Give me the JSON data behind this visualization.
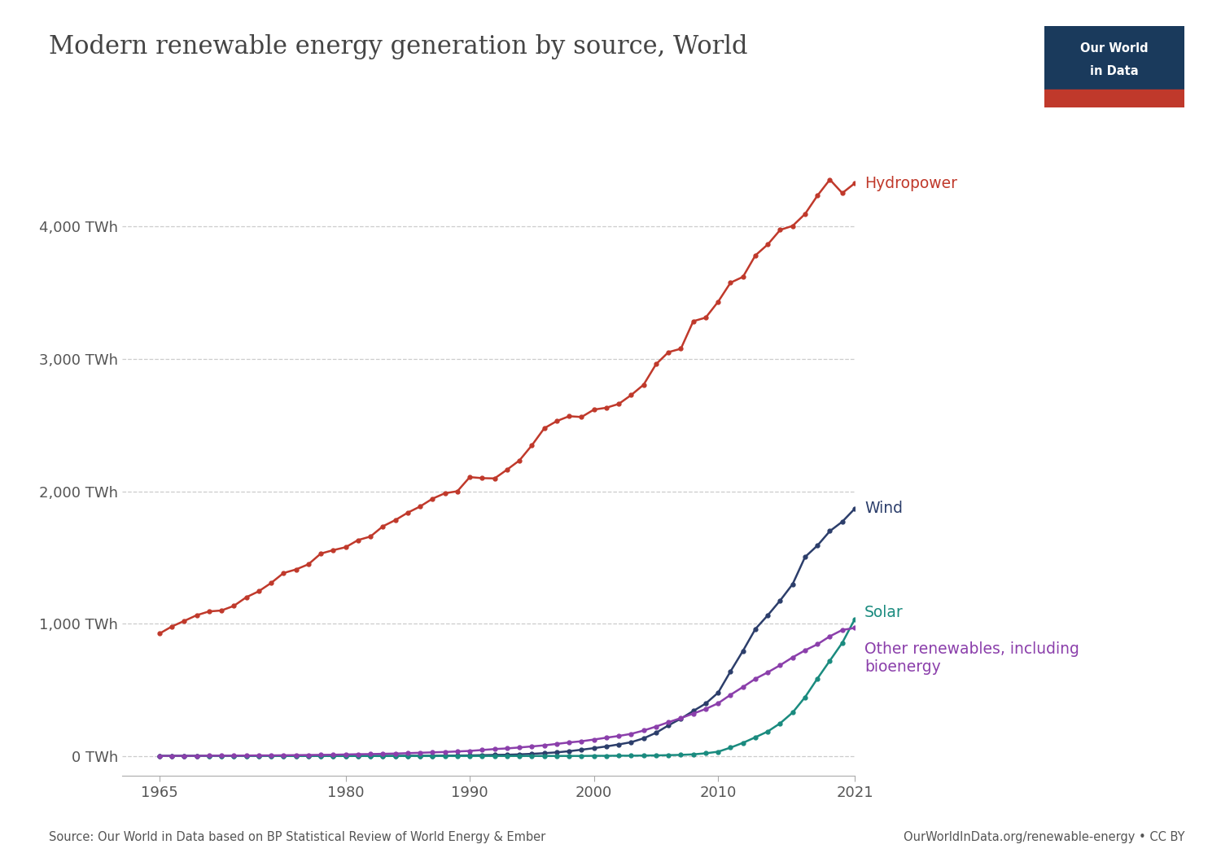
{
  "title": "Modern renewable energy generation by source, World",
  "source_text": "Source: Our World in Data based on BP Statistical Review of World Energy & Ember",
  "url_text": "OurWorldInData.org/renewable-energy • CC BY",
  "background_color": "#ffffff",
  "text_color": "#555555",
  "years": [
    1965,
    1966,
    1967,
    1968,
    1969,
    1970,
    1971,
    1972,
    1973,
    1974,
    1975,
    1976,
    1977,
    1978,
    1979,
    1980,
    1981,
    1982,
    1983,
    1984,
    1985,
    1986,
    1987,
    1988,
    1989,
    1990,
    1991,
    1992,
    1993,
    1994,
    1995,
    1996,
    1997,
    1998,
    1999,
    2000,
    2001,
    2002,
    2003,
    2004,
    2005,
    2006,
    2007,
    2008,
    2009,
    2010,
    2011,
    2012,
    2013,
    2014,
    2015,
    2016,
    2017,
    2018,
    2019,
    2020,
    2021
  ],
  "hydropower": [
    924,
    978,
    1020,
    1063,
    1092,
    1099,
    1134,
    1199,
    1244,
    1307,
    1382,
    1409,
    1448,
    1529,
    1555,
    1577,
    1631,
    1658,
    1735,
    1782,
    1838,
    1885,
    1944,
    1985,
    2000,
    2107,
    2099,
    2097,
    2163,
    2233,
    2347,
    2476,
    2530,
    2567,
    2561,
    2617,
    2631,
    2660,
    2727,
    2805,
    2960,
    3051,
    3077,
    3285,
    3312,
    3432,
    3576,
    3620,
    3782,
    3865,
    3975,
    4005,
    4095,
    4234,
    4355,
    4253,
    4327
  ],
  "wind": [
    0,
    0,
    0,
    0,
    0,
    0,
    0,
    0,
    0,
    0,
    0,
    0,
    0,
    0,
    0,
    0,
    0,
    0,
    0,
    0,
    1,
    1,
    1,
    2,
    3,
    4,
    6,
    8,
    9,
    12,
    16,
    21,
    27,
    36,
    47,
    59,
    72,
    87,
    104,
    133,
    175,
    231,
    282,
    340,
    396,
    478,
    639,
    794,
    959,
    1063,
    1175,
    1298,
    1503,
    1590,
    1699,
    1770,
    1868
  ],
  "solar": [
    0,
    0,
    0,
    0,
    0,
    0,
    0,
    0,
    0,
    0,
    0,
    0,
    0,
    0,
    0,
    0,
    0,
    0,
    0,
    0,
    0,
    0,
    0,
    0,
    0,
    0,
    0,
    0,
    0,
    0,
    0,
    0,
    0,
    0,
    0,
    1,
    1,
    2,
    2,
    3,
    4,
    6,
    8,
    12,
    20,
    32,
    63,
    99,
    141,
    185,
    247,
    328,
    444,
    585,
    720,
    855,
    1033
  ],
  "other_renewables": [
    0,
    1,
    1,
    1,
    2,
    2,
    2,
    3,
    4,
    4,
    5,
    6,
    7,
    8,
    9,
    11,
    13,
    14,
    16,
    18,
    21,
    24,
    27,
    30,
    34,
    38,
    45,
    52,
    57,
    64,
    72,
    80,
    91,
    102,
    111,
    124,
    138,
    151,
    167,
    192,
    222,
    255,
    286,
    320,
    355,
    398,
    462,
    521,
    583,
    632,
    686,
    745,
    798,
    844,
    904,
    952,
    967
  ],
  "hydropower_color": "#C0392B",
  "wind_color": "#2C3E6B",
  "solar_color": "#1A8B7F",
  "other_renewables_color": "#8B3FAB",
  "grid_color": "#cccccc",
  "axis_color": "#aaaaaa",
  "ytick_labels": [
    "0 TWh",
    "1,000 TWh",
    "2,000 TWh",
    "3,000 TWh",
    "4,000 TWh"
  ],
  "ytick_values": [
    0,
    1000,
    2000,
    3000,
    4000
  ],
  "ylim": [
    -150,
    4800
  ],
  "xlim": [
    1962,
    2021
  ],
  "logo_bg_color": "#1a3a5c",
  "logo_red_color": "#C0392B"
}
